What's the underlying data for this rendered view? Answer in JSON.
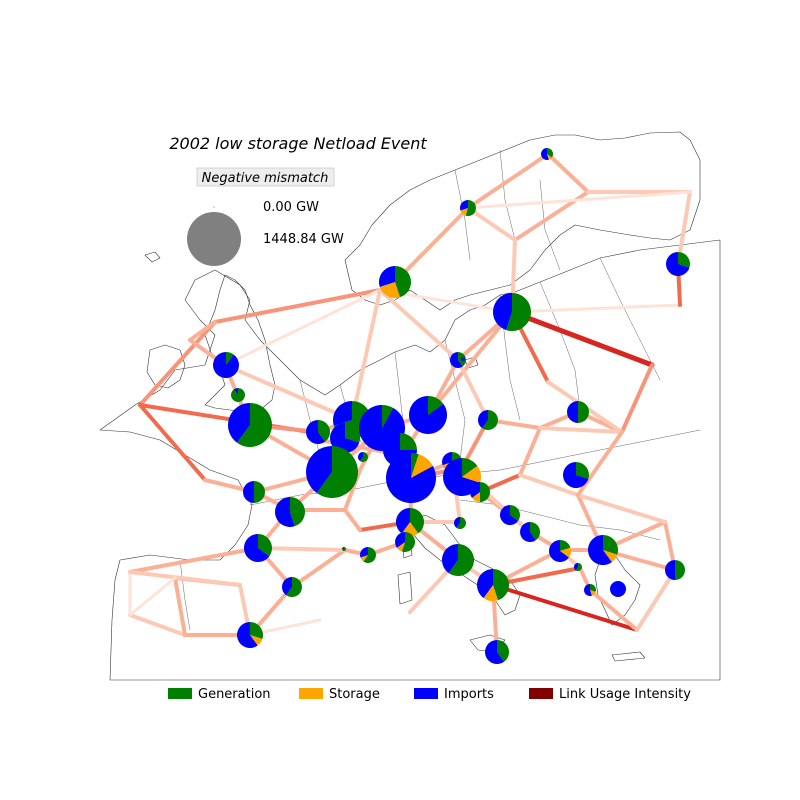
{
  "title": "2002 low storage Netload Event",
  "size_legend": {
    "title": "Negative mismatch",
    "entries": [
      {
        "label": "0.00 GW",
        "value_gw": 0.0
      },
      {
        "label": "1448.84 GW",
        "value_gw": 1448.84
      }
    ],
    "color": "#808080"
  },
  "legend": {
    "items": [
      {
        "label": "Generation",
        "color": "#008000"
      },
      {
        "label": "Storage",
        "color": "#ffa500"
      },
      {
        "label": "Imports",
        "color": "#0000ff"
      },
      {
        "label": "Link Usage Intensity",
        "color": "#800000"
      }
    ]
  }
}
